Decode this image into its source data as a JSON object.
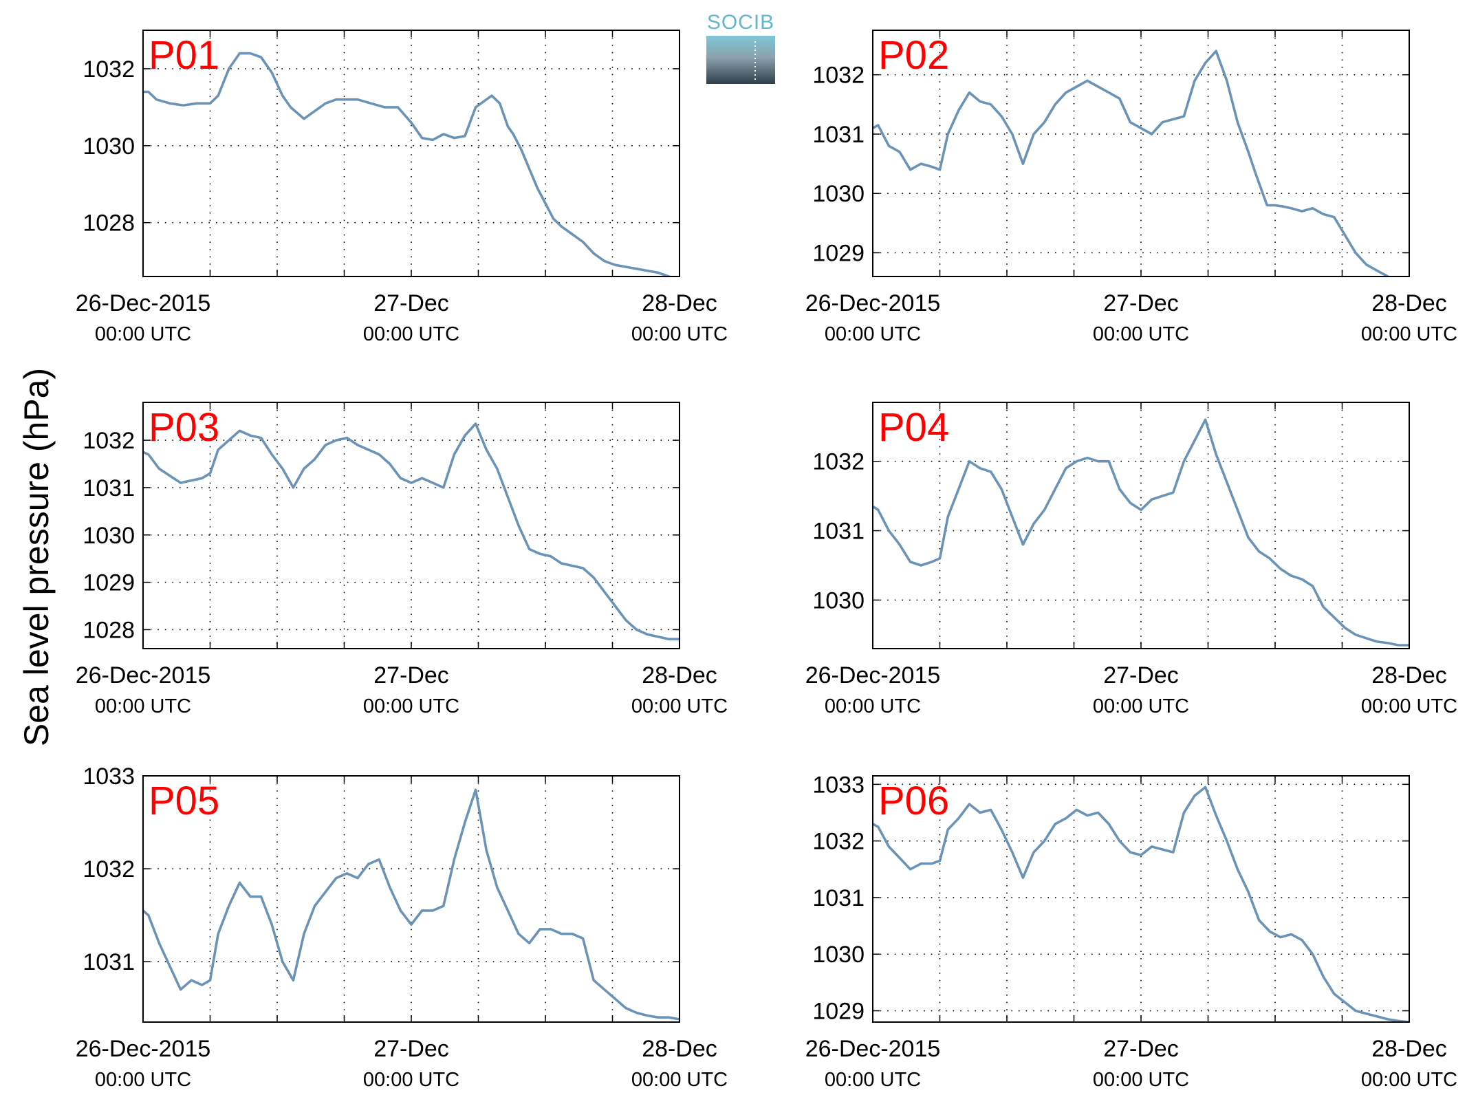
{
  "ylabel": "Sea level pressure (hPa)",
  "logo": {
    "text": "SOCIB"
  },
  "colors": {
    "line": "#6b93b6",
    "panel_label": "#ff0000",
    "logo_text": "#62b6cf",
    "logo_dark": "#2e3f49"
  },
  "x_ticks": [
    {
      "day": 0,
      "line1": "26-Dec-2015",
      "line2": "00:00 UTC"
    },
    {
      "day": 1,
      "line1": "27-Dec",
      "line2": "00:00 UTC"
    },
    {
      "day": 2,
      "line1": "28-Dec",
      "line2": "00:00 UTC"
    }
  ],
  "chart_data": [
    {
      "type": "line",
      "label": "P01",
      "xlim": [
        0,
        2
      ],
      "ylim": [
        1026.6,
        1033.0
      ],
      "yticks": [
        1028,
        1030,
        1032
      ],
      "grid": true,
      "x": [
        0,
        0.02,
        0.05,
        0.1,
        0.15,
        0.2,
        0.25,
        0.28,
        0.32,
        0.36,
        0.4,
        0.44,
        0.48,
        0.52,
        0.55,
        0.6,
        0.64,
        0.68,
        0.72,
        0.76,
        0.8,
        0.85,
        0.9,
        0.95,
        1.0,
        1.04,
        1.08,
        1.12,
        1.16,
        1.2,
        1.24,
        1.28,
        1.3,
        1.33,
        1.36,
        1.38,
        1.41,
        1.44,
        1.47,
        1.5,
        1.53,
        1.56,
        1.6,
        1.64,
        1.68,
        1.72,
        1.76,
        1.8,
        1.84,
        1.88,
        1.92,
        1.96,
        2.0
      ],
      "y": [
        1031.4,
        1031.4,
        1031.2,
        1031.1,
        1031.05,
        1031.1,
        1031.1,
        1031.3,
        1032.0,
        1032.4,
        1032.4,
        1032.3,
        1031.9,
        1031.3,
        1031.0,
        1030.7,
        1030.9,
        1031.1,
        1031.2,
        1031.2,
        1031.2,
        1031.1,
        1031.0,
        1031.0,
        1030.6,
        1030.2,
        1030.15,
        1030.3,
        1030.2,
        1030.25,
        1031.0,
        1031.2,
        1031.3,
        1031.1,
        1030.5,
        1030.3,
        1029.9,
        1029.4,
        1028.9,
        1028.5,
        1028.1,
        1027.9,
        1027.7,
        1027.5,
        1027.2,
        1027.0,
        1026.9,
        1026.85,
        1026.8,
        1026.75,
        1026.7,
        1026.6,
        1026.5
      ]
    },
    {
      "type": "line",
      "label": "P02",
      "xlim": [
        0,
        2
      ],
      "ylim": [
        1028.6,
        1032.75
      ],
      "yticks": [
        1029,
        1030,
        1031,
        1032
      ],
      "grid": true,
      "x": [
        0,
        0.02,
        0.06,
        0.1,
        0.14,
        0.18,
        0.22,
        0.25,
        0.28,
        0.32,
        0.36,
        0.4,
        0.44,
        0.48,
        0.52,
        0.56,
        0.6,
        0.64,
        0.68,
        0.72,
        0.76,
        0.8,
        0.84,
        0.88,
        0.92,
        0.96,
        1.0,
        1.04,
        1.08,
        1.12,
        1.16,
        1.2,
        1.24,
        1.28,
        1.32,
        1.36,
        1.4,
        1.43,
        1.47,
        1.5,
        1.53,
        1.56,
        1.6,
        1.64,
        1.68,
        1.72,
        1.76,
        1.8,
        1.84,
        1.88,
        1.92,
        1.96,
        2.0
      ],
      "y": [
        1031.1,
        1031.15,
        1030.8,
        1030.7,
        1030.4,
        1030.5,
        1030.45,
        1030.4,
        1031.0,
        1031.4,
        1031.7,
        1031.55,
        1031.5,
        1031.3,
        1031.0,
        1030.5,
        1031.0,
        1031.2,
        1031.5,
        1031.7,
        1031.8,
        1031.9,
        1031.8,
        1031.7,
        1031.6,
        1031.2,
        1031.1,
        1031.0,
        1031.2,
        1031.25,
        1031.3,
        1031.9,
        1032.2,
        1032.4,
        1031.9,
        1031.2,
        1030.7,
        1030.3,
        1029.8,
        1029.8,
        1029.78,
        1029.75,
        1029.7,
        1029.75,
        1029.65,
        1029.6,
        1029.3,
        1029.0,
        1028.8,
        1028.7,
        1028.6,
        1028.5,
        1028.45
      ]
    },
    {
      "type": "line",
      "label": "P03",
      "xlim": [
        0,
        2
      ],
      "ylim": [
        1027.6,
        1032.8
      ],
      "yticks": [
        1028,
        1029,
        1030,
        1031,
        1032
      ],
      "grid": true,
      "x": [
        0,
        0.02,
        0.06,
        0.1,
        0.14,
        0.18,
        0.22,
        0.25,
        0.28,
        0.32,
        0.36,
        0.4,
        0.44,
        0.48,
        0.52,
        0.56,
        0.6,
        0.64,
        0.68,
        0.72,
        0.76,
        0.8,
        0.84,
        0.88,
        0.92,
        0.96,
        1.0,
        1.04,
        1.08,
        1.12,
        1.16,
        1.2,
        1.24,
        1.28,
        1.32,
        1.36,
        1.4,
        1.44,
        1.48,
        1.52,
        1.56,
        1.6,
        1.64,
        1.68,
        1.72,
        1.76,
        1.8,
        1.84,
        1.88,
        1.92,
        1.96,
        2.0
      ],
      "y": [
        1031.75,
        1031.7,
        1031.4,
        1031.25,
        1031.1,
        1031.15,
        1031.2,
        1031.3,
        1031.8,
        1032.0,
        1032.2,
        1032.1,
        1032.05,
        1031.7,
        1031.4,
        1031.0,
        1031.4,
        1031.6,
        1031.9,
        1032.0,
        1032.05,
        1031.9,
        1031.8,
        1031.7,
        1031.5,
        1031.2,
        1031.1,
        1031.2,
        1031.1,
        1031.0,
        1031.7,
        1032.1,
        1032.35,
        1031.8,
        1031.4,
        1030.8,
        1030.2,
        1029.7,
        1029.6,
        1029.55,
        1029.4,
        1029.35,
        1029.3,
        1029.1,
        1028.8,
        1028.5,
        1028.2,
        1028.0,
        1027.9,
        1027.85,
        1027.8,
        1027.8
      ]
    },
    {
      "type": "line",
      "label": "P04",
      "xlim": [
        0,
        2
      ],
      "ylim": [
        1029.3,
        1032.85
      ],
      "yticks": [
        1030,
        1031,
        1032
      ],
      "grid": true,
      "x": [
        0,
        0.02,
        0.06,
        0.1,
        0.14,
        0.18,
        0.22,
        0.25,
        0.28,
        0.32,
        0.36,
        0.4,
        0.44,
        0.48,
        0.52,
        0.56,
        0.6,
        0.64,
        0.68,
        0.72,
        0.76,
        0.8,
        0.84,
        0.88,
        0.92,
        0.96,
        1.0,
        1.04,
        1.08,
        1.12,
        1.16,
        1.2,
        1.24,
        1.28,
        1.32,
        1.36,
        1.4,
        1.44,
        1.48,
        1.52,
        1.56,
        1.6,
        1.64,
        1.68,
        1.72,
        1.76,
        1.8,
        1.84,
        1.88,
        1.92,
        1.96,
        2.0
      ],
      "y": [
        1031.35,
        1031.3,
        1031.0,
        1030.8,
        1030.55,
        1030.5,
        1030.55,
        1030.6,
        1031.2,
        1031.6,
        1032.0,
        1031.9,
        1031.85,
        1031.6,
        1031.2,
        1030.8,
        1031.1,
        1031.3,
        1031.6,
        1031.9,
        1032.0,
        1032.05,
        1032.0,
        1032.0,
        1031.6,
        1031.4,
        1031.3,
        1031.45,
        1031.5,
        1031.55,
        1032.0,
        1032.3,
        1032.6,
        1032.1,
        1031.7,
        1031.3,
        1030.9,
        1030.7,
        1030.6,
        1030.45,
        1030.35,
        1030.3,
        1030.2,
        1029.9,
        1029.75,
        1029.6,
        1029.5,
        1029.45,
        1029.4,
        1029.38,
        1029.35,
        1029.35
      ]
    },
    {
      "type": "line",
      "label": "P05",
      "xlim": [
        0,
        2
      ],
      "ylim": [
        1030.35,
        1033.0
      ],
      "yticks": [
        1031,
        1032,
        1033
      ],
      "grid": true,
      "x": [
        0,
        0.02,
        0.06,
        0.1,
        0.14,
        0.18,
        0.22,
        0.25,
        0.28,
        0.32,
        0.36,
        0.4,
        0.44,
        0.48,
        0.52,
        0.56,
        0.6,
        0.64,
        0.68,
        0.72,
        0.76,
        0.8,
        0.84,
        0.88,
        0.92,
        0.96,
        1.0,
        1.04,
        1.08,
        1.12,
        1.16,
        1.2,
        1.24,
        1.28,
        1.32,
        1.36,
        1.4,
        1.44,
        1.48,
        1.52,
        1.56,
        1.6,
        1.64,
        1.68,
        1.72,
        1.76,
        1.8,
        1.84,
        1.88,
        1.92,
        1.96,
        2.0
      ],
      "y": [
        1031.55,
        1031.5,
        1031.2,
        1030.95,
        1030.7,
        1030.8,
        1030.75,
        1030.8,
        1031.3,
        1031.6,
        1031.85,
        1031.7,
        1031.7,
        1031.4,
        1031.0,
        1030.8,
        1031.3,
        1031.6,
        1031.75,
        1031.9,
        1031.95,
        1031.9,
        1032.05,
        1032.1,
        1031.8,
        1031.55,
        1031.4,
        1031.55,
        1031.55,
        1031.6,
        1032.1,
        1032.5,
        1032.85,
        1032.2,
        1031.8,
        1031.55,
        1031.3,
        1031.2,
        1031.35,
        1031.35,
        1031.3,
        1031.3,
        1031.25,
        1030.8,
        1030.7,
        1030.6,
        1030.5,
        1030.45,
        1030.42,
        1030.4,
        1030.4,
        1030.38
      ]
    },
    {
      "type": "line",
      "label": "P06",
      "xlim": [
        0,
        2
      ],
      "ylim": [
        1028.8,
        1033.15
      ],
      "yticks": [
        1029,
        1030,
        1031,
        1032,
        1033
      ],
      "grid": true,
      "x": [
        0,
        0.02,
        0.06,
        0.1,
        0.14,
        0.18,
        0.22,
        0.25,
        0.28,
        0.32,
        0.36,
        0.4,
        0.44,
        0.48,
        0.52,
        0.56,
        0.6,
        0.64,
        0.68,
        0.72,
        0.76,
        0.8,
        0.84,
        0.88,
        0.92,
        0.96,
        1.0,
        1.04,
        1.08,
        1.12,
        1.16,
        1.2,
        1.24,
        1.28,
        1.32,
        1.36,
        1.4,
        1.44,
        1.48,
        1.52,
        1.56,
        1.6,
        1.64,
        1.68,
        1.72,
        1.76,
        1.8,
        1.84,
        1.88,
        1.92,
        1.96,
        2.0
      ],
      "y": [
        1032.3,
        1032.25,
        1031.9,
        1031.7,
        1031.5,
        1031.6,
        1031.6,
        1031.65,
        1032.2,
        1032.4,
        1032.65,
        1032.5,
        1032.55,
        1032.2,
        1031.8,
        1031.35,
        1031.8,
        1032.0,
        1032.3,
        1032.4,
        1032.55,
        1032.45,
        1032.5,
        1032.3,
        1032.0,
        1031.8,
        1031.75,
        1031.9,
        1031.85,
        1031.8,
        1032.5,
        1032.8,
        1032.95,
        1032.45,
        1032.0,
        1031.5,
        1031.1,
        1030.6,
        1030.4,
        1030.3,
        1030.35,
        1030.25,
        1030.0,
        1029.6,
        1029.3,
        1029.15,
        1029.0,
        1028.95,
        1028.9,
        1028.85,
        1028.82,
        1028.8
      ]
    }
  ]
}
